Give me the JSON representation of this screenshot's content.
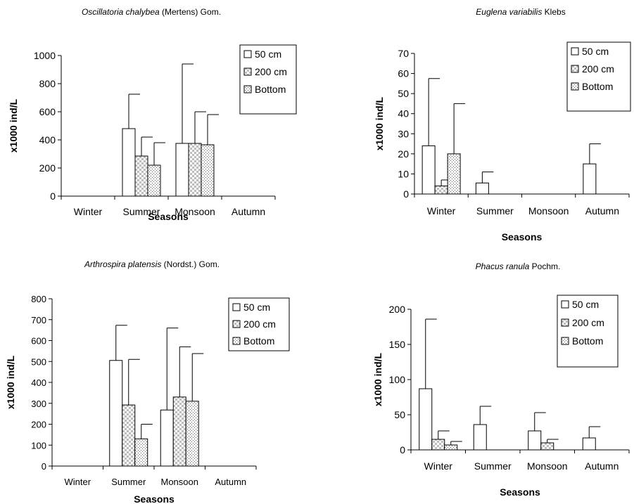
{
  "legend_labels": [
    "50 cm",
    "200 cm",
    "Bottom"
  ],
  "chart_data": [
    {
      "type": "bar",
      "title_italic": "Oscillatoria chalybea",
      "title_rest": " (Mertens) Gom.",
      "xlabel": "Seasons",
      "ylabel": "x1000 ind/L",
      "categories": [
        "Winter",
        "Summer",
        "Monsoon",
        "Autumn"
      ],
      "ylim": [
        0,
        1000
      ],
      "yticks": [
        0,
        200,
        400,
        600,
        800,
        1000
      ],
      "legend_position": "top-right",
      "series": [
        {
          "name": "50 cm",
          "values": [
            0,
            480,
            375,
            0
          ],
          "errors": [
            0,
            245,
            565,
            0
          ]
        },
        {
          "name": "200 cm",
          "values": [
            0,
            285,
            375,
            0
          ],
          "errors": [
            0,
            135,
            225,
            0
          ]
        },
        {
          "name": "Bottom",
          "values": [
            0,
            220,
            365,
            0
          ],
          "errors": [
            0,
            160,
            215,
            0
          ]
        }
      ]
    },
    {
      "type": "bar",
      "title_italic": "Euglena variabilis",
      "title_rest": " Klebs",
      "xlabel": "Seasons",
      "ylabel": "x1000 ind/L",
      "categories": [
        "Winter",
        "Summer",
        "Monsoon",
        "Autumn"
      ],
      "ylim": [
        0,
        70
      ],
      "yticks": [
        0,
        10,
        20,
        30,
        40,
        50,
        60,
        70
      ],
      "legend_position": "top-right",
      "series": [
        {
          "name": "50 cm",
          "values": [
            24,
            5.5,
            0,
            15
          ],
          "errors": [
            33.5,
            5.5,
            0,
            10
          ]
        },
        {
          "name": "200 cm",
          "values": [
            4,
            0,
            0,
            0
          ],
          "errors": [
            3,
            0,
            0,
            0
          ]
        },
        {
          "name": "Bottom",
          "values": [
            20,
            0,
            0,
            0
          ],
          "errors": [
            25,
            0,
            0,
            0
          ]
        }
      ]
    },
    {
      "type": "bar",
      "title_italic": "Arthrospira platensis",
      "title_rest": " (Nordst.) Gom.",
      "xlabel": "Seasons",
      "ylabel": "x1000 ind/L",
      "categories": [
        "Winter",
        "Summer",
        "Monsoon",
        "Autumn"
      ],
      "ylim": [
        0,
        800
      ],
      "yticks": [
        0,
        100,
        200,
        300,
        400,
        500,
        600,
        700,
        800
      ],
      "legend_position": "top-right",
      "series": [
        {
          "name": "50 cm",
          "values": [
            0,
            505,
            268,
            0
          ],
          "errors": [
            0,
            168,
            392,
            0
          ]
        },
        {
          "name": "200 cm",
          "values": [
            0,
            292,
            330,
            0
          ],
          "errors": [
            0,
            218,
            240,
            0
          ]
        },
        {
          "name": "Bottom",
          "values": [
            0,
            130,
            310,
            0
          ],
          "errors": [
            0,
            70,
            228,
            0
          ]
        }
      ]
    },
    {
      "type": "bar",
      "title_italic": "Phacus ranula",
      "title_rest": " Pochm.",
      "xlabel": "Seasons",
      "ylabel": "x1000 ind/L",
      "categories": [
        "Winter",
        "Summer",
        "Monsoon",
        "Autumn"
      ],
      "ylim": [
        0,
        200
      ],
      "yticks": [
        0,
        50,
        100,
        150,
        200
      ],
      "legend_position": "top-right",
      "series": [
        {
          "name": "50 cm",
          "values": [
            87,
            36,
            27,
            17
          ],
          "errors": [
            99,
            26,
            26,
            16
          ]
        },
        {
          "name": "200 cm",
          "values": [
            15,
            0,
            10,
            0
          ],
          "errors": [
            12,
            0,
            5,
            0
          ]
        },
        {
          "name": "Bottom",
          "values": [
            7,
            0,
            0,
            0
          ],
          "errors": [
            5,
            0,
            0,
            0
          ]
        }
      ]
    }
  ]
}
